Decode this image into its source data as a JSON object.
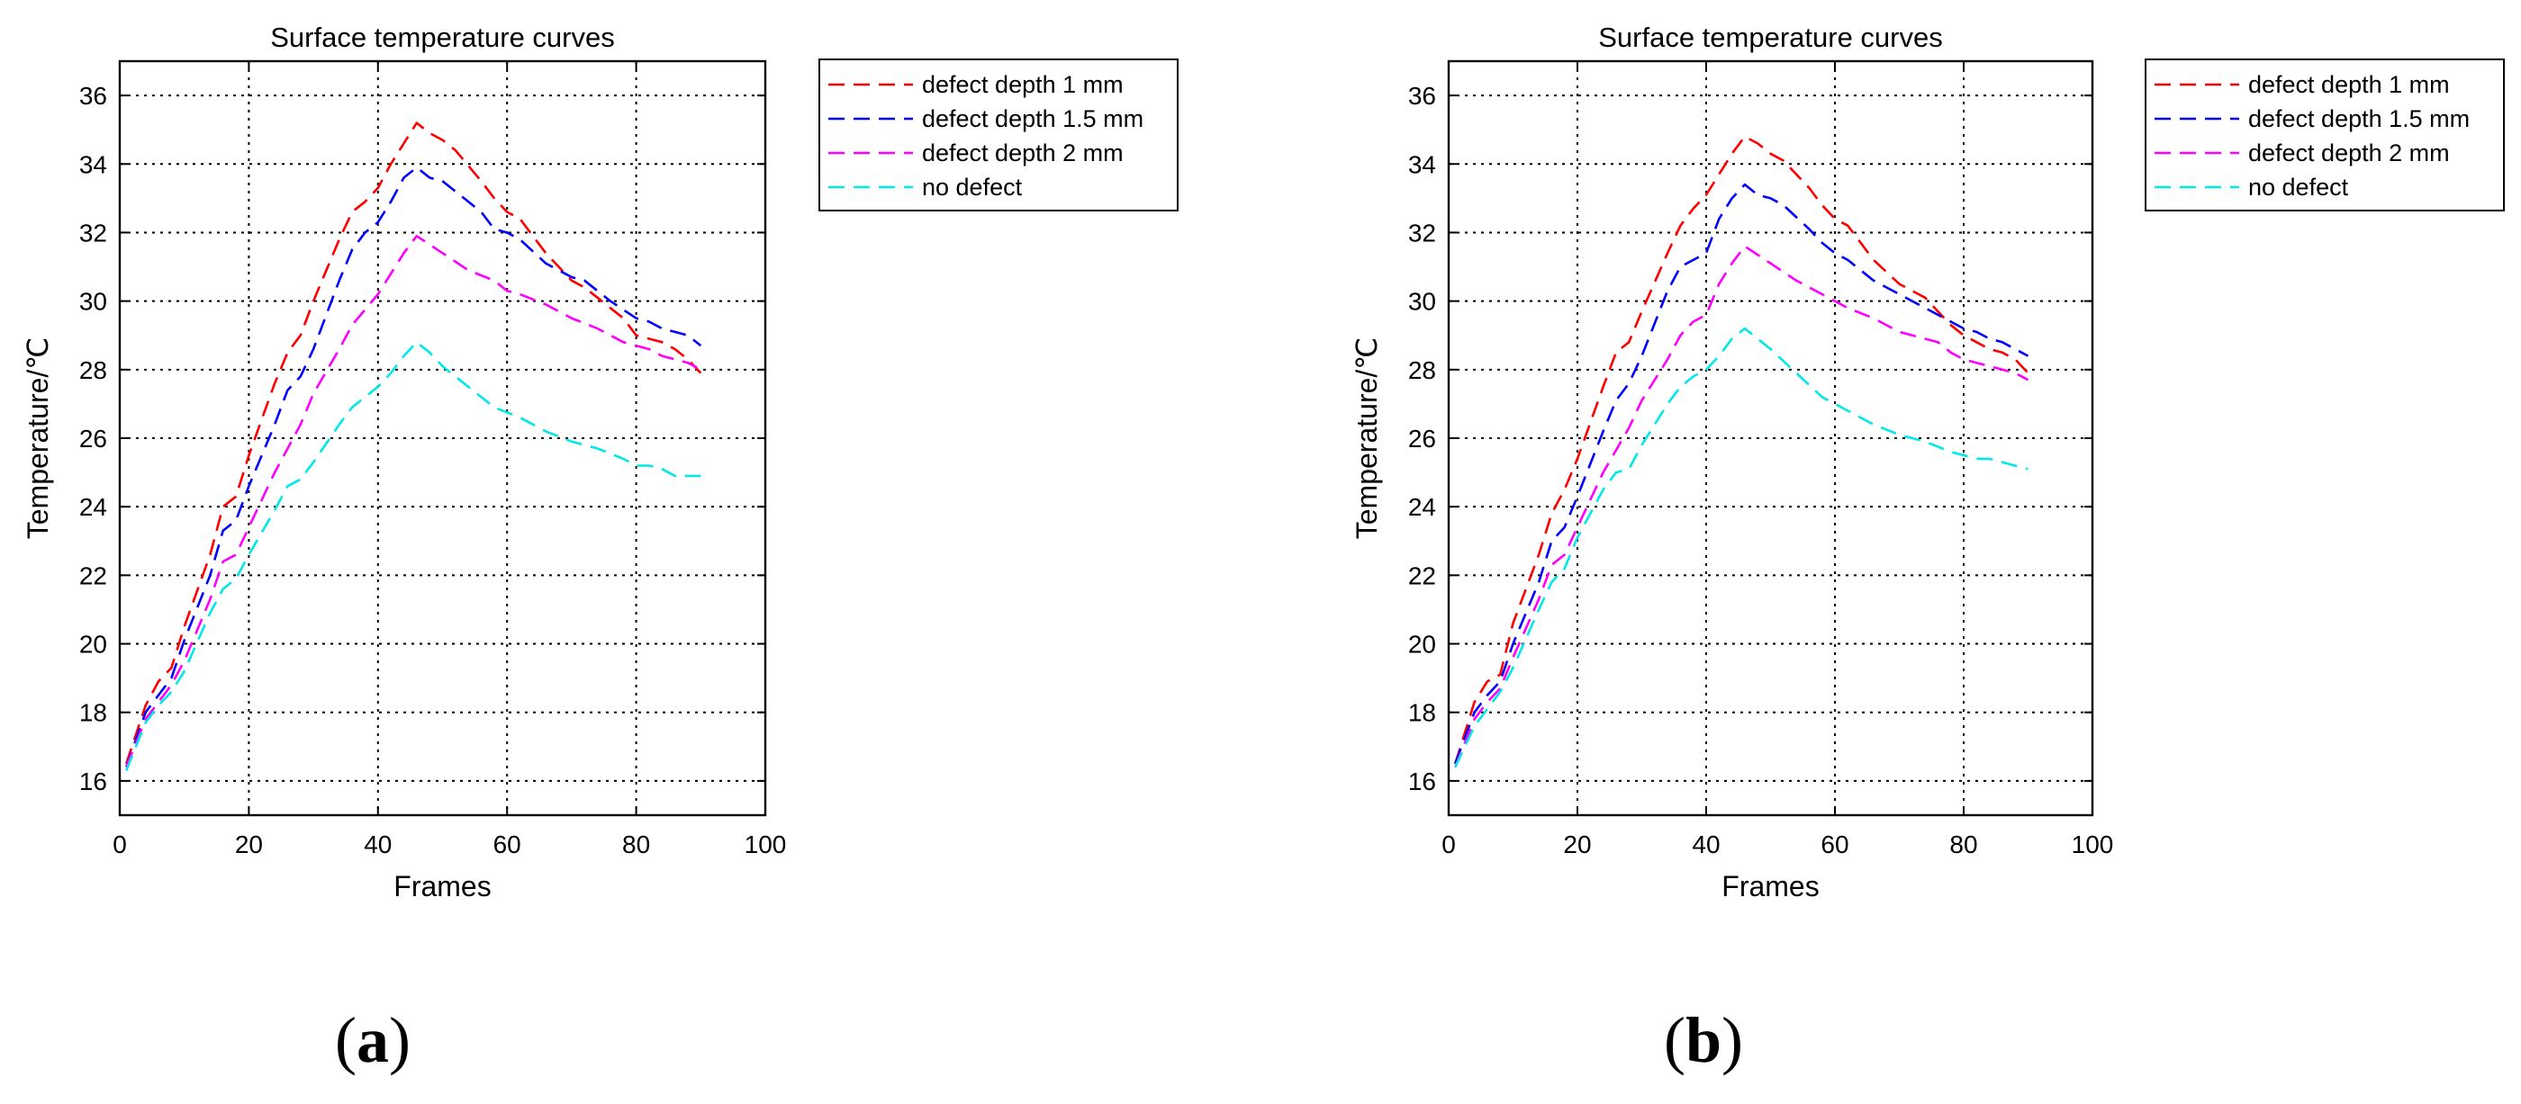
{
  "chart_data": [
    {
      "type": "line",
      "panel": "a",
      "title": "Surface temperature curves",
      "xlabel": "Frames",
      "ylabel": "Temperature/℃",
      "xlim": [
        0,
        100
      ],
      "ylim": [
        15,
        37
      ],
      "xticks": [
        0,
        20,
        40,
        60,
        80,
        100
      ],
      "yticks": [
        16,
        18,
        20,
        22,
        24,
        26,
        28,
        30,
        32,
        34,
        36
      ],
      "grid": true,
      "legend_position": "outside-right-top",
      "subfigure_label": {
        "open": "(",
        "letter": "a",
        "close": ")"
      },
      "series": [
        {
          "name": "defect depth 1 mm",
          "color": "#ff0000",
          "x": [
            1,
            4,
            6,
            8,
            10,
            14,
            16,
            18,
            20,
            24,
            26,
            28,
            30,
            34,
            36,
            38,
            40,
            42,
            44,
            46,
            48,
            50,
            52,
            56,
            58,
            60,
            62,
            66,
            70,
            72,
            74,
            76,
            78,
            80,
            82,
            84,
            86,
            88,
            90
          ],
          "values": [
            16.5,
            18.2,
            18.9,
            19.3,
            20.5,
            22.6,
            24.0,
            24.3,
            25.5,
            27.6,
            28.5,
            29.0,
            30.0,
            31.8,
            32.6,
            32.9,
            33.3,
            34.0,
            34.6,
            35.2,
            34.9,
            34.7,
            34.4,
            33.5,
            33.0,
            32.6,
            32.4,
            31.4,
            30.6,
            30.4,
            30.1,
            29.8,
            29.5,
            29.0,
            28.9,
            28.8,
            28.6,
            28.3,
            27.9
          ]
        },
        {
          "name": "defect depth 1.5 mm",
          "color": "#0000ff",
          "x": [
            1,
            4,
            6,
            8,
            10,
            14,
            16,
            18,
            20,
            24,
            26,
            28,
            30,
            34,
            36,
            38,
            40,
            42,
            44,
            46,
            48,
            50,
            52,
            56,
            58,
            60,
            62,
            66,
            70,
            72,
            76,
            80,
            82,
            84,
            86,
            88,
            90
          ],
          "values": [
            16.4,
            18.0,
            18.5,
            19.0,
            20.1,
            22.0,
            23.3,
            23.6,
            24.6,
            26.4,
            27.4,
            27.8,
            28.6,
            30.6,
            31.5,
            32.0,
            32.3,
            32.9,
            33.6,
            33.9,
            33.6,
            33.5,
            33.2,
            32.6,
            32.1,
            32.0,
            31.8,
            31.1,
            30.7,
            30.6,
            30.0,
            29.5,
            29.4,
            29.2,
            29.1,
            29.0,
            28.7
          ]
        },
        {
          "name": "defect depth 2 mm",
          "color": "#ff00ff",
          "x": [
            1,
            4,
            6,
            8,
            10,
            14,
            16,
            18,
            20,
            24,
            28,
            30,
            34,
            36,
            40,
            42,
            44,
            46,
            50,
            54,
            58,
            60,
            62,
            66,
            70,
            74,
            78,
            80,
            82,
            84,
            86,
            88,
            90
          ],
          "values": [
            16.4,
            17.8,
            18.3,
            18.8,
            19.5,
            21.3,
            22.4,
            22.6,
            23.4,
            25.0,
            26.4,
            27.3,
            28.6,
            29.3,
            30.2,
            30.8,
            31.4,
            31.9,
            31.4,
            30.9,
            30.6,
            30.3,
            30.2,
            29.9,
            29.5,
            29.2,
            28.8,
            28.7,
            28.6,
            28.4,
            28.3,
            28.2,
            28.0
          ]
        },
        {
          "name": "no defect",
          "color": "#00e8e8",
          "x": [
            1,
            4,
            6,
            8,
            10,
            14,
            16,
            18,
            20,
            24,
            26,
            28,
            30,
            34,
            36,
            38,
            40,
            42,
            44,
            46,
            48,
            50,
            54,
            58,
            62,
            66,
            70,
            74,
            78,
            80,
            82,
            84,
            86,
            88,
            90
          ],
          "values": [
            16.3,
            17.7,
            18.2,
            18.6,
            19.2,
            20.9,
            21.6,
            21.9,
            22.6,
            23.9,
            24.6,
            24.8,
            25.3,
            26.4,
            26.9,
            27.2,
            27.5,
            27.9,
            28.4,
            28.8,
            28.5,
            28.1,
            27.5,
            26.9,
            26.6,
            26.2,
            25.9,
            25.7,
            25.4,
            25.2,
            25.2,
            25.1,
            24.9,
            24.9,
            24.9
          ]
        }
      ]
    },
    {
      "type": "line",
      "panel": "b",
      "title": "Surface temperature curves",
      "xlabel": "Frames",
      "ylabel": "Temperature/℃",
      "xlim": [
        0,
        100
      ],
      "ylim": [
        15,
        37
      ],
      "xticks": [
        0,
        20,
        40,
        60,
        80,
        100
      ],
      "yticks": [
        16,
        18,
        20,
        22,
        24,
        26,
        28,
        30,
        32,
        34,
        36
      ],
      "grid": true,
      "legend_position": "outside-right-top",
      "subfigure_label": {
        "open": "(",
        "letter": "b",
        "close": ")"
      },
      "series": [
        {
          "name": "defect depth 1 mm",
          "color": "#ff0000",
          "x": [
            1,
            4,
            6,
            8,
            10,
            14,
            16,
            18,
            20,
            24,
            26,
            28,
            30,
            34,
            36,
            38,
            40,
            42,
            44,
            46,
            48,
            50,
            52,
            56,
            58,
            60,
            62,
            66,
            70,
            72,
            74,
            76,
            78,
            80,
            82,
            84,
            86,
            88,
            90
          ],
          "values": [
            16.5,
            18.3,
            18.9,
            19.1,
            20.6,
            22.6,
            23.8,
            24.5,
            25.4,
            27.5,
            28.5,
            28.8,
            29.7,
            31.4,
            32.2,
            32.7,
            33.1,
            33.7,
            34.3,
            34.8,
            34.6,
            34.3,
            34.1,
            33.3,
            32.8,
            32.4,
            32.2,
            31.2,
            30.5,
            30.3,
            30.1,
            29.7,
            29.3,
            29.0,
            28.8,
            28.6,
            28.5,
            28.3,
            27.9
          ]
        },
        {
          "name": "defect depth 1.5 mm",
          "color": "#0000ff",
          "x": [
            1,
            4,
            6,
            8,
            10,
            14,
            16,
            18,
            20,
            24,
            26,
            28,
            30,
            34,
            36,
            38,
            40,
            42,
            44,
            46,
            48,
            50,
            52,
            56,
            58,
            60,
            62,
            66,
            70,
            72,
            76,
            80,
            82,
            84,
            86,
            88,
            90
          ],
          "values": [
            16.5,
            18.0,
            18.5,
            18.9,
            20.0,
            21.8,
            23.0,
            23.4,
            24.3,
            26.2,
            27.1,
            27.6,
            28.4,
            30.3,
            31.0,
            31.2,
            31.4,
            32.4,
            33.0,
            33.4,
            33.1,
            33.0,
            32.8,
            32.1,
            31.7,
            31.4,
            31.2,
            30.6,
            30.2,
            30.0,
            29.6,
            29.2,
            29.1,
            28.9,
            28.8,
            28.6,
            28.4
          ]
        },
        {
          "name": "defect depth 2 mm",
          "color": "#ff00ff",
          "x": [
            1,
            4,
            6,
            8,
            10,
            14,
            16,
            18,
            20,
            24,
            28,
            30,
            34,
            36,
            38,
            40,
            42,
            44,
            46,
            50,
            54,
            58,
            60,
            62,
            66,
            70,
            74,
            76,
            78,
            80,
            82,
            84,
            86,
            88,
            90
          ],
          "values": [
            16.4,
            17.8,
            18.3,
            18.7,
            19.6,
            21.3,
            22.3,
            22.6,
            23.4,
            25.0,
            26.3,
            27.1,
            28.3,
            29.0,
            29.4,
            29.6,
            30.5,
            31.1,
            31.6,
            31.1,
            30.6,
            30.2,
            30.0,
            29.8,
            29.5,
            29.1,
            28.9,
            28.8,
            28.5,
            28.3,
            28.2,
            28.1,
            28.0,
            27.9,
            27.7
          ]
        },
        {
          "name": "no defect",
          "color": "#00e8e8",
          "x": [
            1,
            4,
            6,
            8,
            10,
            14,
            16,
            18,
            20,
            24,
            26,
            28,
            30,
            34,
            36,
            38,
            40,
            42,
            44,
            46,
            48,
            50,
            54,
            58,
            62,
            66,
            70,
            74,
            78,
            80,
            82,
            84,
            86,
            88,
            90
          ],
          "values": [
            16.4,
            17.6,
            18.1,
            18.6,
            19.3,
            21.0,
            21.8,
            22.2,
            23.1,
            24.5,
            25.0,
            25.1,
            25.8,
            27.0,
            27.5,
            27.8,
            28.0,
            28.4,
            28.9,
            29.2,
            28.9,
            28.6,
            27.9,
            27.2,
            26.8,
            26.4,
            26.1,
            25.9,
            25.6,
            25.5,
            25.4,
            25.4,
            25.3,
            25.2,
            25.1
          ]
        }
      ]
    }
  ]
}
